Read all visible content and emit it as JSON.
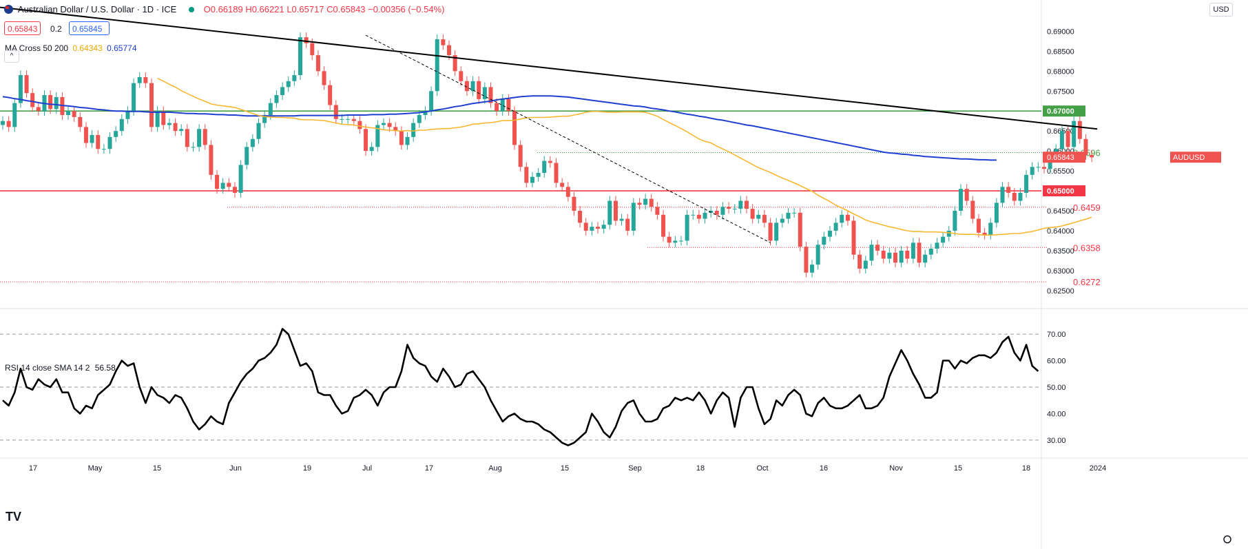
{
  "header": {
    "title": "Australian Dollar / U.S. Dollar · 1D · ICE",
    "ohlc": "O0.66189 H0.66221 L0.65717 C0.65843 −0.00356 (−0.54%)",
    "bid": "0.65843",
    "spread": "0.2",
    "ask": "0.65845",
    "indicator_label": "MA Cross 50 200",
    "ma50_value": "0.64343",
    "ma200_value": "0.65774",
    "currency": "USD",
    "collapse_icon": "chevron-up-icon",
    "logo": "TV"
  },
  "rsi_header": {
    "label": "RSI 14 close SMA 14 2",
    "value": "56.58"
  },
  "colors": {
    "up": "#26a69a",
    "down": "#ef5350",
    "ma50": "#f7b731",
    "ma200": "#1e3fcf",
    "green_level": "#43a047",
    "red_level": "#f23645",
    "trend": "#000000",
    "rsi": "#000000"
  },
  "chart_data": [
    {
      "type": "candlestick",
      "symbol_label": "AUDUSD",
      "last_price": "0.65843",
      "y_ticks": [
        "0.69000",
        "0.68500",
        "0.68000",
        "0.67500",
        "0.67000",
        "0.66500",
        "0.66000",
        "0.65500",
        "0.65000",
        "0.64500",
        "0.64000",
        "0.63500",
        "0.63000",
        "0.62500"
      ],
      "ylim": [
        0.621,
        0.693
      ],
      "x_tick_labels": [
        "17",
        "May",
        "15",
        "Jun",
        "19",
        "Jul",
        "17",
        "Aug",
        "15",
        "Sep",
        "18",
        "Oct",
        "16",
        "Nov",
        "15",
        "18",
        "2024"
      ],
      "horizontal_levels": [
        {
          "value": 0.67,
          "label": "0.67000",
          "color": "#43a047"
        },
        {
          "value": 0.65,
          "label": "0.65000",
          "color": "#f23645"
        }
      ],
      "annotations": [
        {
          "value": 0.6596,
          "label": "0.6596",
          "color": "#43a047"
        },
        {
          "value": 0.6459,
          "label": "0.6459",
          "color": "#f23645"
        },
        {
          "value": 0.6358,
          "label": "0.6358",
          "color": "#f23645"
        },
        {
          "value": 0.6272,
          "label": "0.6272",
          "color": "#f23645"
        }
      ],
      "trendline": {
        "from": 0.696,
        "to": 0.6655
      },
      "dashed_trendline": {
        "from": 0.689,
        "to": 0.637
      },
      "closes": [
        0.6675,
        0.666,
        0.672,
        0.679,
        0.6745,
        0.671,
        0.67,
        0.674,
        0.6705,
        0.6735,
        0.669,
        0.67,
        0.6685,
        0.666,
        0.662,
        0.664,
        0.6605,
        0.6605,
        0.6635,
        0.665,
        0.668,
        0.67,
        0.677,
        0.6785,
        0.677,
        0.666,
        0.67,
        0.6665,
        0.667,
        0.665,
        0.6655,
        0.661,
        0.661,
        0.6655,
        0.6615,
        0.654,
        0.6505,
        0.652,
        0.651,
        0.6495,
        0.6565,
        0.661,
        0.663,
        0.667,
        0.669,
        0.672,
        0.674,
        0.676,
        0.6775,
        0.679,
        0.6885,
        0.687,
        0.684,
        0.68,
        0.6765,
        0.6715,
        0.668,
        0.668,
        0.668,
        0.6675,
        0.6655,
        0.66,
        0.661,
        0.6665,
        0.667,
        0.666,
        0.665,
        0.6615,
        0.6635,
        0.667,
        0.669,
        0.67,
        0.675,
        0.688,
        0.6865,
        0.684,
        0.68,
        0.6775,
        0.675,
        0.6775,
        0.673,
        0.676,
        0.672,
        0.67,
        0.673,
        0.67,
        0.6615,
        0.656,
        0.652,
        0.6535,
        0.6545,
        0.6575,
        0.657,
        0.652,
        0.651,
        0.6485,
        0.645,
        0.642,
        0.64,
        0.641,
        0.6405,
        0.6415,
        0.6475,
        0.6425,
        0.643,
        0.64,
        0.647,
        0.6465,
        0.648,
        0.646,
        0.644,
        0.6385,
        0.637,
        0.6375,
        0.6375,
        0.644,
        0.644,
        0.643,
        0.6445,
        0.645,
        0.644,
        0.646,
        0.6455,
        0.6455,
        0.6475,
        0.6455,
        0.643,
        0.644,
        0.642,
        0.6375,
        0.642,
        0.643,
        0.6445,
        0.6445,
        0.636,
        0.6295,
        0.6315,
        0.6365,
        0.6385,
        0.64,
        0.642,
        0.644,
        0.6425,
        0.634,
        0.6305,
        0.6325,
        0.6365,
        0.635,
        0.633,
        0.6345,
        0.632,
        0.635,
        0.633,
        0.637,
        0.632,
        0.634,
        0.6355,
        0.637,
        0.6385,
        0.64,
        0.645,
        0.6505,
        0.6475,
        0.643,
        0.6395,
        0.639,
        0.642,
        0.647,
        0.651,
        0.6495,
        0.6475,
        0.6495,
        0.654,
        0.656,
        0.656,
        0.6555,
        0.6585,
        0.6605,
        0.665,
        0.661,
        0.6675,
        0.663,
        0.659,
        0.6584
      ],
      "ma50": [
        0.6782,
        0.6775,
        0.6767,
        0.676,
        0.6751,
        0.6744,
        0.6737,
        0.673,
        0.6724,
        0.6718,
        0.6715,
        0.6713,
        0.6711,
        0.6709,
        0.6704,
        0.6699,
        0.6694,
        0.6689,
        0.6686,
        0.6685,
        0.6684,
        0.6684,
        0.6683,
        0.6682,
        0.6679,
        0.6678,
        0.6678,
        0.6677,
        0.6676,
        0.6673,
        0.667,
        0.6667,
        0.6666,
        0.6665,
        0.6662,
        0.666,
        0.6658,
        0.6656,
        0.6653,
        0.6652,
        0.6651,
        0.665,
        0.6651,
        0.665,
        0.6652,
        0.6652,
        0.6654,
        0.6655,
        0.6656,
        0.6656,
        0.6658,
        0.666,
        0.6663,
        0.6667,
        0.6668,
        0.667,
        0.6671,
        0.6673,
        0.6676,
        0.6676,
        0.6677,
        0.668,
        0.6683,
        0.6684,
        0.6684,
        0.6684,
        0.6685,
        0.6686,
        0.6687,
        0.6687,
        0.669,
        0.6693,
        0.6697,
        0.6699,
        0.6699,
        0.6698,
        0.6697,
        0.6697,
        0.6698,
        0.6698,
        0.6698,
        0.6698,
        0.6697,
        0.6692,
        0.6687,
        0.6679,
        0.6671,
        0.6664,
        0.6656,
        0.6648,
        0.6639,
        0.663,
        0.6624,
        0.662,
        0.6612,
        0.6605,
        0.6598,
        0.659,
        0.6582,
        0.6574,
        0.6566,
        0.6558,
        0.6552,
        0.6546,
        0.6539,
        0.6532,
        0.6526,
        0.652,
        0.6513,
        0.6506,
        0.6499,
        0.6489,
        0.6481,
        0.6473,
        0.6464,
        0.6457,
        0.645,
        0.6442,
        0.6435,
        0.6427,
        0.6422,
        0.6418,
        0.6414,
        0.641,
        0.6407,
        0.6403,
        0.64,
        0.6398,
        0.6398,
        0.6397,
        0.6397,
        0.6397,
        0.6396,
        0.6395,
        0.6393,
        0.6391,
        0.6391,
        0.6391,
        0.639,
        0.6389,
        0.6389,
        0.639,
        0.6391,
        0.6392,
        0.6393,
        0.6393,
        0.6396,
        0.6398,
        0.6402,
        0.6406,
        0.6408,
        0.6409,
        0.6412,
        0.6416,
        0.642,
        0.6425,
        0.6429,
        0.6434
      ],
      "ma200": [
        0.6736,
        0.6734,
        0.6731,
        0.6729,
        0.6726,
        0.6724,
        0.6721,
        0.6719,
        0.6717,
        0.6716,
        0.6714,
        0.6713,
        0.6711,
        0.6709,
        0.6708,
        0.6706,
        0.6704,
        0.6703,
        0.6701,
        0.67,
        0.67,
        0.6699,
        0.6699,
        0.6699,
        0.6698,
        0.6697,
        0.6697,
        0.6697,
        0.6697,
        0.6696,
        0.6695,
        0.6694,
        0.6694,
        0.6693,
        0.6693,
        0.6692,
        0.6691,
        0.6691,
        0.669,
        0.669,
        0.6689,
        0.6688,
        0.6688,
        0.6688,
        0.6688,
        0.6688,
        0.6688,
        0.6688,
        0.6688,
        0.6688,
        0.6689,
        0.6689,
        0.6689,
        0.6689,
        0.6689,
        0.6689,
        0.6689,
        0.6689,
        0.669,
        0.669,
        0.669,
        0.669,
        0.6691,
        0.6691,
        0.6691,
        0.6692,
        0.6692,
        0.6693,
        0.6694,
        0.6695,
        0.6696,
        0.6698,
        0.67,
        0.6703,
        0.6705,
        0.6708,
        0.6711,
        0.6713,
        0.6716,
        0.6719,
        0.6721,
        0.6723,
        0.6725,
        0.6728,
        0.673,
        0.6732,
        0.6734,
        0.6736,
        0.6737,
        0.6738,
        0.6738,
        0.6738,
        0.6738,
        0.6737,
        0.6736,
        0.6735,
        0.6733,
        0.6731,
        0.6729,
        0.6727,
        0.6725,
        0.6723,
        0.6721,
        0.6719,
        0.6717,
        0.6715,
        0.6713,
        0.6712,
        0.671,
        0.6707,
        0.6705,
        0.6703,
        0.67,
        0.6698,
        0.6695,
        0.6692,
        0.669,
        0.6687,
        0.6685,
        0.6682,
        0.6679,
        0.6677,
        0.6674,
        0.6671,
        0.6668,
        0.6665,
        0.6663,
        0.666,
        0.6657,
        0.6654,
        0.6651,
        0.6648,
        0.6645,
        0.6642,
        0.6639,
        0.6636,
        0.6633,
        0.663,
        0.6627,
        0.6624,
        0.6621,
        0.6618,
        0.6615,
        0.6612,
        0.6609,
        0.6606,
        0.6603,
        0.66,
        0.6597,
        0.6595,
        0.6594,
        0.6592,
        0.6591,
        0.6589,
        0.6588,
        0.6586,
        0.6585,
        0.6584,
        0.6583,
        0.6582,
        0.6581,
        0.658,
        0.658,
        0.6579,
        0.6578,
        0.6578,
        0.6577,
        0.6577
      ]
    },
    {
      "type": "line",
      "name": "RSI 14 close",
      "y_ticks": [
        "70.00",
        "60.00",
        "50.00",
        "40.00",
        "30.00"
      ],
      "ylim": [
        24,
        76
      ],
      "reference_lines": [
        70,
        50,
        30
      ],
      "values": [
        45,
        43,
        48,
        57,
        50,
        49,
        53,
        51,
        50,
        53,
        48,
        48,
        42,
        40,
        43,
        42,
        47,
        49,
        51,
        56,
        60,
        58,
        59,
        50,
        44,
        50,
        47,
        46,
        44,
        47,
        46,
        42,
        37,
        34,
        36,
        39,
        37,
        36,
        44,
        48,
        52,
        55,
        57,
        60,
        61,
        63,
        66,
        72,
        70,
        64,
        58,
        59,
        56,
        48,
        47,
        47,
        43,
        40,
        41,
        46,
        47,
        49,
        47,
        43,
        48,
        50,
        50,
        56,
        66,
        61,
        59,
        58,
        54,
        52,
        57,
        54,
        50,
        51,
        55,
        56,
        53,
        50,
        45,
        41,
        37,
        39,
        40,
        38,
        37,
        37,
        36,
        34,
        33,
        31,
        29,
        28,
        29,
        31,
        33,
        40,
        37,
        33,
        31,
        35,
        41,
        44,
        45,
        40,
        37,
        37,
        38,
        42,
        43,
        46,
        45,
        46,
        45,
        48,
        45,
        40,
        45,
        48,
        46,
        35,
        46,
        50,
        50,
        42,
        36,
        38,
        45,
        43,
        47,
        49,
        47,
        40,
        39,
        44,
        46,
        43,
        42,
        42,
        43,
        45,
        47,
        42,
        42,
        43,
        46,
        54,
        59,
        64,
        60,
        55,
        51,
        46,
        46,
        48,
        60,
        60,
        57,
        60,
        59,
        61,
        62,
        62,
        61,
        63,
        67,
        69,
        63,
        60,
        66,
        58,
        56
      ],
      "last_value": "56.58"
    }
  ]
}
